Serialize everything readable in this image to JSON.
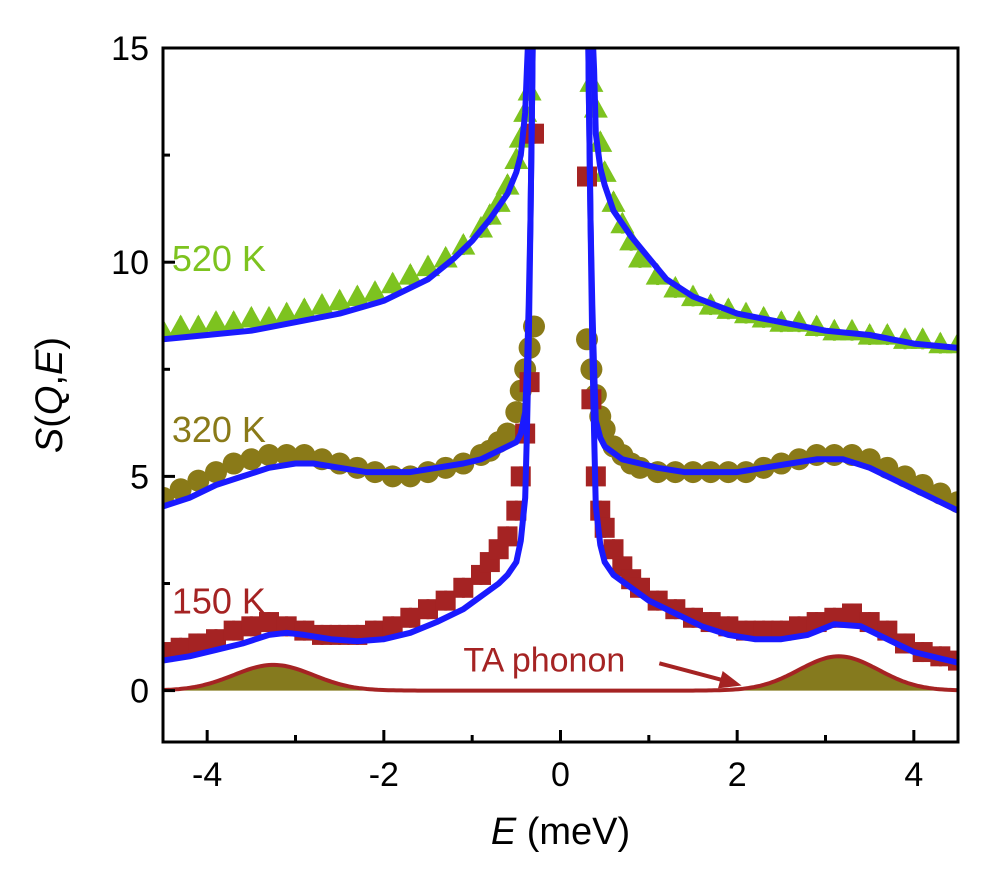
{
  "chart_data": {
    "type": "scatter",
    "xlabel": {
      "italic": "E",
      "rest": " (meV)"
    },
    "ylabel": {
      "s": "S",
      "open": "(",
      "q": "Q",
      "comma": ",",
      "e": "E",
      "close": ")"
    },
    "xlim": [
      -4.5,
      4.5
    ],
    "ylim": [
      -1.2,
      15
    ],
    "x_ticks": [
      -4,
      -2,
      0,
      2,
      4
    ],
    "x_tick_labels": [
      "-4",
      "-2",
      "0",
      "2",
      "4"
    ],
    "y_ticks": [
      0,
      5,
      10,
      15
    ],
    "y_tick_labels": [
      "0",
      "5",
      "10",
      "15"
    ],
    "grid": false,
    "series": [
      {
        "name": "520 K",
        "marker": "triangle",
        "color": "#7dc31f",
        "label_pos": [
          -4.4,
          9.8
        ],
        "x": [
          -4.5,
          -4.3,
          -4.1,
          -3.9,
          -3.7,
          -3.5,
          -3.3,
          -3.1,
          -2.9,
          -2.7,
          -2.5,
          -2.3,
          -2.1,
          -1.9,
          -1.7,
          -1.5,
          -1.3,
          -1.1,
          -0.9,
          -0.8,
          -0.7,
          -0.6,
          -0.5,
          -0.45,
          -0.4,
          -0.35,
          0.35,
          0.4,
          0.45,
          0.5,
          0.6,
          0.7,
          0.8,
          0.9,
          1.1,
          1.3,
          1.5,
          1.7,
          1.9,
          2.1,
          2.3,
          2.5,
          2.7,
          2.9,
          3.1,
          3.3,
          3.5,
          3.7,
          3.9,
          4.1,
          4.3,
          4.5
        ],
        "y": [
          8.4,
          8.5,
          8.5,
          8.6,
          8.6,
          8.7,
          8.7,
          8.8,
          8.9,
          9.0,
          9.1,
          9.2,
          9.3,
          9.5,
          9.7,
          9.9,
          10.1,
          10.4,
          10.8,
          11.1,
          11.4,
          11.8,
          12.4,
          12.9,
          13.5,
          14.0,
          14.2,
          13.6,
          12.8,
          12.1,
          11.4,
          10.9,
          10.5,
          10.1,
          9.7,
          9.4,
          9.2,
          9.0,
          8.9,
          8.8,
          8.7,
          8.6,
          8.6,
          8.5,
          8.4,
          8.4,
          8.3,
          8.3,
          8.2,
          8.2,
          8.1,
          8.1
        ]
      },
      {
        "name": "320 K",
        "marker": "circle",
        "color": "#8a7a18",
        "label_pos": [
          -4.4,
          5.8
        ],
        "x": [
          -4.5,
          -4.3,
          -4.1,
          -3.9,
          -3.7,
          -3.5,
          -3.3,
          -3.1,
          -2.9,
          -2.7,
          -2.5,
          -2.3,
          -2.1,
          -1.9,
          -1.7,
          -1.5,
          -1.3,
          -1.1,
          -0.9,
          -0.8,
          -0.7,
          -0.6,
          -0.5,
          -0.45,
          -0.4,
          -0.35,
          -0.3,
          0.3,
          0.35,
          0.4,
          0.45,
          0.5,
          0.6,
          0.7,
          0.8,
          0.9,
          1.1,
          1.3,
          1.5,
          1.7,
          1.9,
          2.1,
          2.3,
          2.5,
          2.7,
          2.9,
          3.1,
          3.3,
          3.5,
          3.7,
          3.9,
          4.1,
          4.3,
          4.5
        ],
        "y": [
          4.5,
          4.7,
          4.9,
          5.1,
          5.3,
          5.4,
          5.5,
          5.5,
          5.5,
          5.4,
          5.3,
          5.2,
          5.1,
          5.0,
          5.0,
          5.1,
          5.2,
          5.3,
          5.5,
          5.6,
          5.8,
          6.0,
          6.5,
          7.0,
          7.5,
          8.0,
          8.5,
          8.2,
          7.5,
          6.9,
          6.4,
          6.1,
          5.7,
          5.5,
          5.3,
          5.2,
          5.1,
          5.1,
          5.1,
          5.1,
          5.1,
          5.1,
          5.2,
          5.3,
          5.4,
          5.5,
          5.5,
          5.5,
          5.4,
          5.2,
          5.0,
          4.8,
          4.6,
          4.4
        ]
      },
      {
        "name": "150 K",
        "marker": "square",
        "color": "#a52323",
        "label_pos": [
          -4.4,
          1.8
        ],
        "x": [
          -4.5,
          -4.3,
          -4.1,
          -3.9,
          -3.7,
          -3.5,
          -3.3,
          -3.1,
          -2.9,
          -2.7,
          -2.5,
          -2.3,
          -2.1,
          -1.9,
          -1.7,
          -1.5,
          -1.3,
          -1.1,
          -0.9,
          -0.8,
          -0.7,
          -0.6,
          -0.5,
          -0.45,
          -0.4,
          -0.35,
          -0.3,
          0.3,
          0.35,
          0.4,
          0.45,
          0.5,
          0.6,
          0.7,
          0.8,
          0.9,
          1.1,
          1.3,
          1.5,
          1.7,
          1.9,
          2.1,
          2.3,
          2.5,
          2.7,
          2.9,
          3.1,
          3.3,
          3.5,
          3.7,
          3.9,
          4.1,
          4.3,
          4.5
        ],
        "y": [
          0.9,
          1.0,
          1.1,
          1.2,
          1.4,
          1.5,
          1.6,
          1.5,
          1.4,
          1.3,
          1.3,
          1.3,
          1.4,
          1.5,
          1.7,
          1.9,
          2.1,
          2.4,
          2.7,
          3.0,
          3.3,
          3.6,
          4.2,
          5.0,
          6.0,
          7.2,
          13.0,
          12.0,
          6.8,
          5.0,
          4.2,
          3.8,
          3.3,
          2.9,
          2.6,
          2.4,
          2.1,
          1.9,
          1.7,
          1.6,
          1.5,
          1.4,
          1.4,
          1.4,
          1.5,
          1.6,
          1.7,
          1.8,
          1.6,
          1.4,
          1.1,
          0.9,
          0.8,
          0.7
        ]
      }
    ],
    "fits": [
      {
        "name": "520 K fit",
        "color": "#1a1aff",
        "x": [
          -4.5,
          -4.0,
          -3.5,
          -3.0,
          -2.5,
          -2.0,
          -1.5,
          -1.2,
          -1.0,
          -0.8,
          -0.6,
          -0.5,
          -0.45,
          -0.4,
          -0.38,
          -0.36,
          -0.34,
          -0.32,
          -0.3,
          -0.28,
          -0.26,
          0.26,
          0.28,
          0.3,
          0.32,
          0.34,
          0.36,
          0.38,
          0.4,
          0.45,
          0.5,
          0.6,
          0.8,
          1.0,
          1.2,
          1.5,
          2.0,
          2.5,
          3.0,
          3.5,
          4.0,
          4.5
        ],
        "y": [
          8.2,
          8.3,
          8.4,
          8.6,
          8.8,
          9.1,
          9.6,
          10.1,
          10.5,
          11.0,
          11.6,
          12.1,
          12.5,
          13.5,
          14.5,
          15.5,
          17.0,
          19.0,
          22.0,
          26.0,
          30.0,
          30.0,
          26.0,
          22.0,
          19.0,
          17.0,
          15.5,
          14.5,
          13.0,
          12.2,
          11.8,
          11.2,
          10.6,
          10.1,
          9.6,
          9.2,
          8.8,
          8.6,
          8.4,
          8.3,
          8.1,
          8.0
        ]
      },
      {
        "name": "320 K fit",
        "color": "#1a1aff",
        "x": [
          -4.5,
          -4.2,
          -3.9,
          -3.6,
          -3.3,
          -3.0,
          -2.8,
          -2.5,
          -2.2,
          -2.0,
          -1.7,
          -1.4,
          -1.1,
          -0.9,
          -0.7,
          -0.5,
          -0.45,
          -0.4,
          -0.38,
          -0.36,
          -0.34,
          -0.32,
          -0.3,
          -0.28,
          -0.26,
          0.26,
          0.28,
          0.3,
          0.32,
          0.34,
          0.36,
          0.38,
          0.4,
          0.45,
          0.5,
          0.7,
          0.9,
          1.1,
          1.4,
          1.7,
          2.0,
          2.3,
          2.6,
          2.9,
          3.2,
          3.5,
          3.8,
          4.1,
          4.3,
          4.5
        ],
        "y": [
          4.3,
          4.5,
          4.8,
          5.0,
          5.2,
          5.3,
          5.3,
          5.2,
          5.1,
          5.1,
          5.1,
          5.2,
          5.3,
          5.4,
          5.6,
          5.8,
          6.0,
          6.5,
          7.5,
          9.0,
          11.0,
          14.0,
          18.0,
          22.0,
          28.0,
          28.0,
          22.0,
          18.0,
          14.0,
          11.0,
          9.0,
          7.5,
          6.3,
          5.9,
          5.7,
          5.4,
          5.3,
          5.2,
          5.1,
          5.1,
          5.1,
          5.2,
          5.3,
          5.4,
          5.4,
          5.2,
          4.9,
          4.6,
          4.4,
          4.2
        ]
      },
      {
        "name": "150 K fit",
        "color": "#1a1aff",
        "x": [
          -4.5,
          -4.2,
          -3.9,
          -3.6,
          -3.3,
          -3.1,
          -2.9,
          -2.6,
          -2.3,
          -2.0,
          -1.7,
          -1.4,
          -1.1,
          -0.9,
          -0.7,
          -0.6,
          -0.5,
          -0.45,
          -0.4,
          -0.38,
          -0.36,
          -0.34,
          -0.32,
          -0.3,
          -0.28,
          -0.26,
          0.26,
          0.28,
          0.3,
          0.32,
          0.34,
          0.36,
          0.38,
          0.4,
          0.45,
          0.5,
          0.6,
          0.8,
          1.0,
          1.3,
          1.6,
          1.9,
          2.2,
          2.5,
          2.8,
          3.1,
          3.4,
          3.7,
          4.0,
          4.3,
          4.5
        ],
        "y": [
          0.7,
          0.8,
          0.95,
          1.1,
          1.3,
          1.35,
          1.3,
          1.2,
          1.15,
          1.2,
          1.35,
          1.6,
          1.9,
          2.2,
          2.5,
          2.7,
          3.0,
          3.5,
          4.5,
          6.0,
          8.0,
          11.0,
          14.0,
          18.0,
          23.0,
          28.0,
          28.0,
          23.0,
          18.0,
          14.0,
          11.0,
          8.0,
          6.0,
          4.3,
          3.4,
          3.0,
          2.7,
          2.4,
          2.1,
          1.8,
          1.5,
          1.3,
          1.2,
          1.2,
          1.3,
          1.55,
          1.5,
          1.2,
          0.9,
          0.75,
          0.65
        ]
      }
    ],
    "phonon": {
      "color": "#a52323",
      "fill": "#857a1e",
      "peaks": [
        {
          "center": -3.25,
          "amplitude": 0.6,
          "width": 0.45
        },
        {
          "center": 3.15,
          "amplitude": 0.8,
          "width": 0.45
        }
      ],
      "baseline": 0.0
    },
    "annotation": {
      "text": "TA phonon",
      "color": "#a52323",
      "text_pos": [
        -1.1,
        0.45
      ],
      "arrow_to": [
        2.05,
        0.12
      ]
    }
  }
}
